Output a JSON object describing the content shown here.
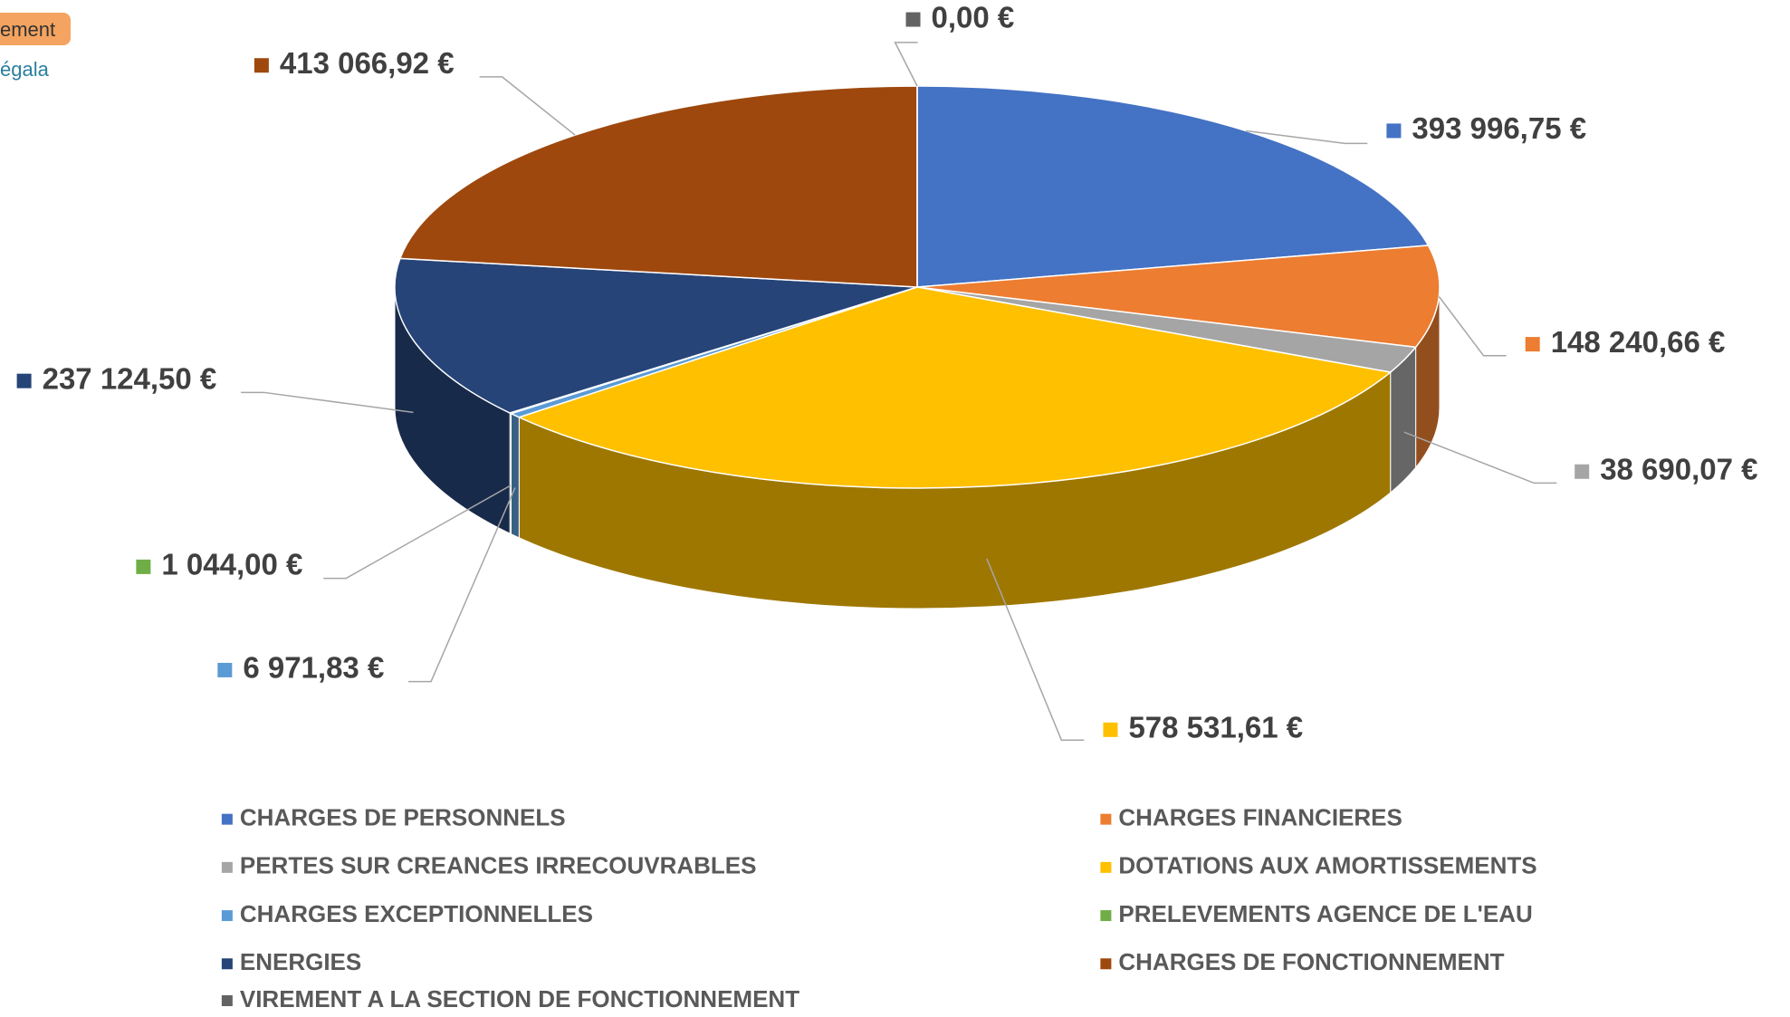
{
  "fragments": [
    "ement",
    "égala"
  ],
  "chart_data": {
    "type": "pie3d",
    "categories": [
      "CHARGES DE PERSONNELS",
      "CHARGES FINANCIERES",
      "PERTES SUR CREANCES IRRECOUVRABLES",
      "DOTATIONS AUX AMORTISSEMENTS",
      "CHARGES EXCEPTIONNELLES",
      "PRELEVEMENTS AGENCE DE L'EAU",
      "ENERGIES",
      "CHARGES DE FONCTIONNEMENT",
      "VIREMENT A LA SECTION DE FONCTIONNEMENT"
    ],
    "values": [
      393996.75,
      148240.66,
      38690.07,
      578531.61,
      6971.83,
      1044.0,
      237124.5,
      413066.92,
      0
    ],
    "value_labels": [
      "393 996,75 €",
      "148 240,66 €",
      "38 690,07 €",
      "578 531,61 €",
      "6 971,83 €",
      "1 044,00 €",
      "237 124,50 €",
      "413 066,92 €",
      "0,00 €"
    ],
    "colors": [
      "#4472c4",
      "#ed7d31",
      "#a5a5a5",
      "#ffc000",
      "#5b9bd5",
      "#70ad47",
      "#264478",
      "#9e480e",
      "#636363"
    ],
    "legend": "bottom"
  }
}
